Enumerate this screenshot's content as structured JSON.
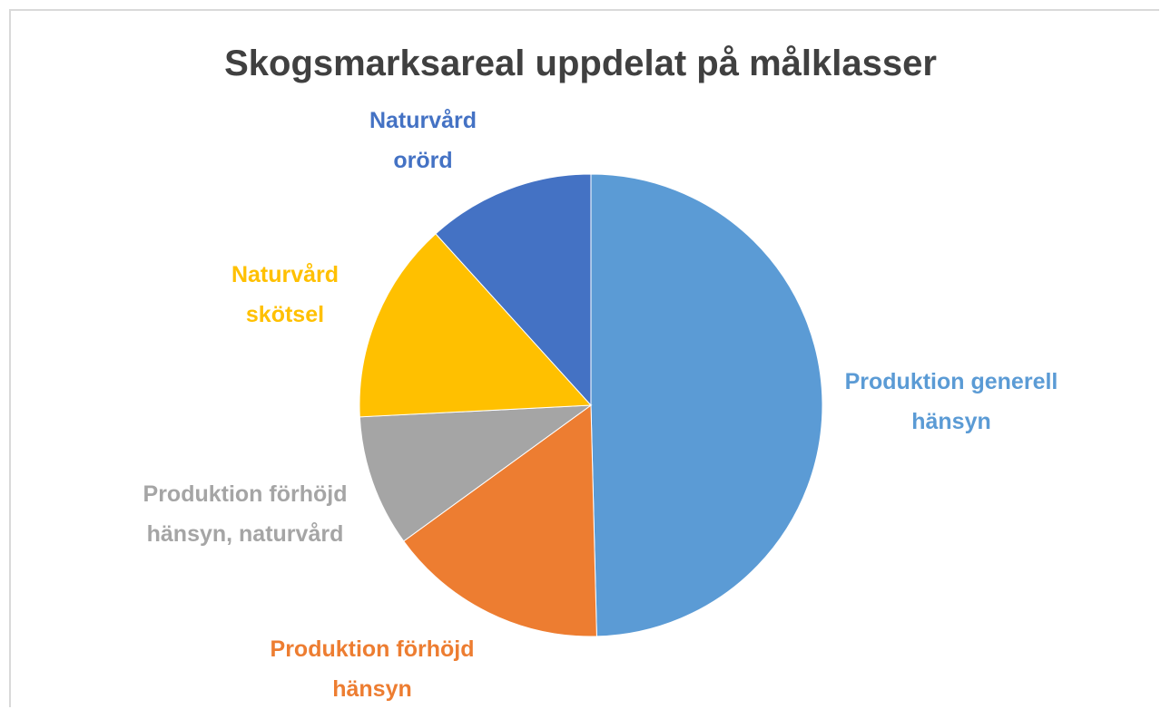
{
  "chart_data": {
    "type": "pie",
    "title": "Skogsmarksareal uppdelat på målklasser",
    "categories": [
      "Produktion generell hänsyn",
      "Produktion förhöjd hänsyn",
      "Produktion förhöjd hänsyn, naturvård",
      "Naturvård skötsel",
      "Naturvård orörd"
    ],
    "values": [
      49.6,
      15.4,
      9.2,
      14.1,
      11.7
    ],
    "colors": [
      "#5b9bd5",
      "#ed7d31",
      "#a5a5a5",
      "#ffc000",
      "#4472c4"
    ]
  }
}
